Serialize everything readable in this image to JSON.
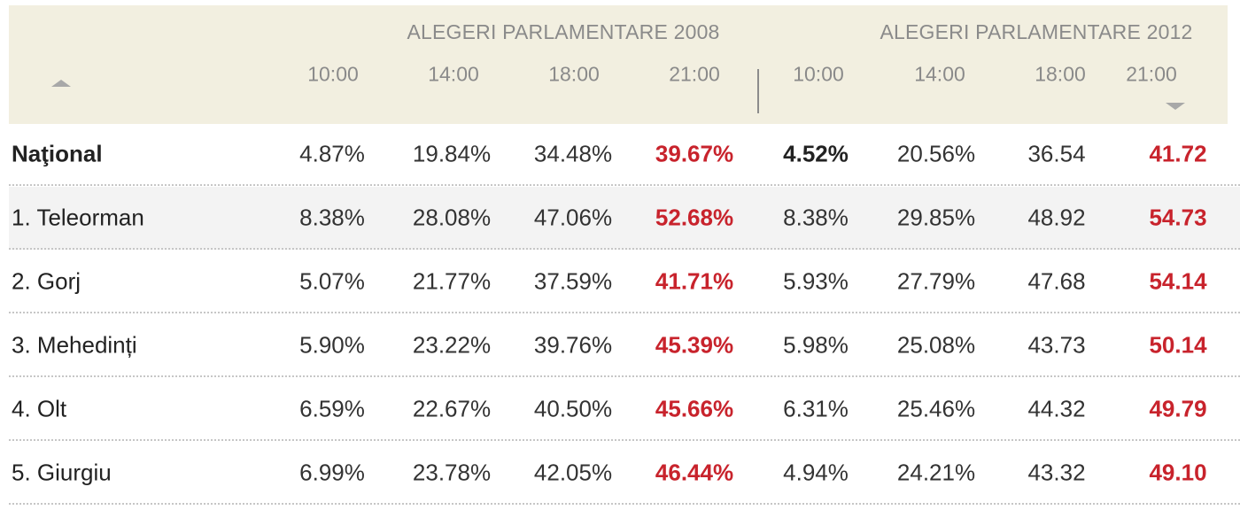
{
  "colors": {
    "header_bg": "#f2efe0",
    "highlight_red": "#c8232c",
    "row_alt_bg": "#f3f3f3",
    "header_text": "#8a8a8a"
  },
  "icons": {
    "sort_up": "sort-up-triangle",
    "sort_down": "sort-down-triangle"
  },
  "header": {
    "group_2008": "ALEGERI PARLAMENTARE 2008",
    "group_2012": "ALEGERI PARLAMENTARE 2012",
    "times": [
      "10:00",
      "14:00",
      "18:00",
      "21:00",
      "10:00",
      "14:00",
      "18:00",
      "21:00"
    ]
  },
  "rows": [
    {
      "name": "Naţional",
      "values": [
        "4.87%",
        "19.84%",
        "34.48%",
        "39.67%",
        "4.52%",
        "20.56%",
        "36.54",
        "41.72"
      ]
    },
    {
      "name": "1. Teleorman",
      "values": [
        "8.38%",
        "28.08%",
        "47.06%",
        "52.68%",
        "8.38%",
        "29.85%",
        "48.92",
        "54.73"
      ]
    },
    {
      "name": "2. Gorj",
      "values": [
        "5.07%",
        "21.77%",
        "37.59%",
        "41.71%",
        "5.93%",
        "27.79%",
        "47.68",
        "54.14"
      ]
    },
    {
      "name": "3. Mehedinți",
      "values": [
        "5.90%",
        "23.22%",
        "39.76%",
        "45.39%",
        "5.98%",
        "25.08%",
        "43.73",
        "50.14"
      ]
    },
    {
      "name": "4. Olt",
      "values": [
        "6.59%",
        "22.67%",
        "40.50%",
        "45.66%",
        "6.31%",
        "25.46%",
        "44.32",
        "49.79"
      ]
    },
    {
      "name": "5. Giurgiu",
      "values": [
        "6.99%",
        "23.78%",
        "42.05%",
        "46.44%",
        "4.94%",
        "24.21%",
        "43.32",
        "49.10"
      ]
    }
  ]
}
